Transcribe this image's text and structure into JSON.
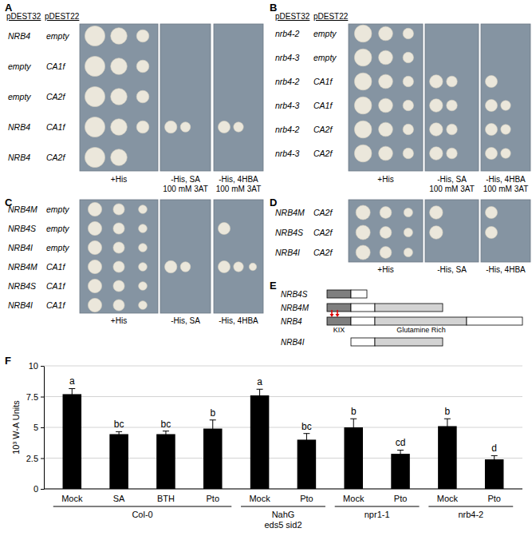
{
  "panels": [
    {
      "label": "A",
      "headers": [
        "pDEST32",
        "pDEST22"
      ],
      "rows": [
        {
          "bait": "NRB4",
          "prey": "empty",
          "growth": [
            3,
            0,
            0
          ]
        },
        {
          "bait": "empty",
          "prey": "CA1f",
          "growth": [
            3,
            0,
            0
          ]
        },
        {
          "bait": "empty",
          "prey": "CA2f",
          "growth": [
            3,
            0,
            0
          ]
        },
        {
          "bait": "NRB4",
          "prey": "CA1f",
          "growth": [
            3,
            2,
            2
          ]
        },
        {
          "bait": "NRB4",
          "prey": "CA2f",
          "growth": [
            2,
            0,
            0
          ]
        }
      ],
      "plates": [
        "+His",
        "-His, SA\n100 mM 3AT",
        "-His, 4HBA\n100 mM 3AT"
      ]
    },
    {
      "label": "B",
      "headers": [
        "pDEST32",
        "pDEST22"
      ],
      "rows": [
        {
          "bait": "nrb4-2",
          "prey": "empty",
          "growth": [
            3,
            0,
            0
          ]
        },
        {
          "bait": "nrb4-3",
          "prey": "empty",
          "growth": [
            3,
            0,
            0
          ]
        },
        {
          "bait": "nrb4-2",
          "prey": "CA1f",
          "growth": [
            3,
            2,
            1
          ]
        },
        {
          "bait": "nrb4-3",
          "prey": "CA1f",
          "growth": [
            3,
            2,
            2
          ]
        },
        {
          "bait": "nrb4-2",
          "prey": "CA2f",
          "growth": [
            3,
            2,
            2
          ]
        },
        {
          "bait": "nrb4-3",
          "prey": "CA2f",
          "growth": [
            3,
            2,
            2
          ]
        }
      ],
      "plates": [
        "+His",
        "-His, SA\n100 mM 3AT",
        "-His, 4HBA\n100 mM 3AT"
      ]
    },
    {
      "label": "C",
      "rows": [
        {
          "bait": "NRB4M",
          "prey": "empty",
          "growth": [
            3,
            0,
            0
          ]
        },
        {
          "bait": "NRB4S",
          "prey": "empty",
          "growth": [
            3,
            0,
            1
          ]
        },
        {
          "bait": "NRB4I",
          "prey": "empty",
          "growth": [
            3,
            0,
            0
          ]
        },
        {
          "bait": "NRB4M",
          "prey": "CA1f",
          "growth": [
            3,
            2,
            3
          ]
        },
        {
          "bait": "NRB4S",
          "prey": "CA1f",
          "growth": [
            3,
            0,
            0
          ]
        },
        {
          "bait": "NRB4I",
          "prey": "CA1f",
          "growth": [
            3,
            0,
            0
          ]
        }
      ],
      "plates": [
        "+His",
        "-His, SA",
        "-His, 4HBA"
      ]
    },
    {
      "label": "D",
      "rows": [
        {
          "bait": "NRB4M",
          "prey": "CA2f",
          "growth": [
            3,
            1,
            1
          ]
        },
        {
          "bait": "NRB4S",
          "prey": "CA2f",
          "growth": [
            3,
            1,
            1
          ]
        },
        {
          "bait": "NRB4I",
          "prey": "CA2f",
          "growth": [
            3,
            0,
            0
          ]
        }
      ],
      "plates": [
        "+His",
        "-His, SA",
        "-His, 4HBA"
      ]
    },
    {
      "label": "E",
      "constructs": [
        "NRB4S",
        "NRB4M",
        "NRB4",
        "NRB4I"
      ],
      "domains": [
        "KIX",
        "Glutamine Rich"
      ]
    }
  ],
  "chart_data": {
    "type": "bar",
    "panel": "F",
    "y_label": "10³ W-A Units",
    "categories": [
      "Mock",
      "SA",
      "BTH",
      "Pto",
      "Mock",
      "Pto",
      "Mock",
      "Pto",
      "Mock",
      "Pto"
    ],
    "values": [
      7.7,
      4.45,
      4.45,
      4.9,
      7.6,
      4.0,
      5.0,
      2.85,
      5.1,
      2.4
    ],
    "errors": [
      0.45,
      0.2,
      0.25,
      0.7,
      0.5,
      0.5,
      0.7,
      0.3,
      0.6,
      0.3
    ],
    "annotations": [
      "a",
      "bc",
      "bc",
      "b",
      "a",
      "bc",
      "b",
      "cd",
      "b",
      "d"
    ],
    "groups": [
      {
        "label": "Col-0",
        "size": 4
      },
      {
        "label": "NahG\neds5 sid2",
        "size": 2
      },
      {
        "label": "npr1-1",
        "size": 2
      },
      {
        "label": "nrb4-2",
        "size": 2
      }
    ],
    "color": "#000000",
    "ylim": [
      0,
      10
    ],
    "yticks": [
      0,
      2.5,
      5,
      7.5,
      10
    ],
    "grid": true
  }
}
